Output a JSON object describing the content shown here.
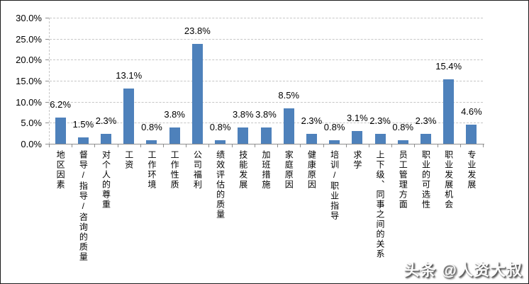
{
  "watermark": {
    "text": "头条 @人资大叔"
  },
  "chart_data": {
    "type": "bar",
    "title": "",
    "xlabel": "",
    "ylabel": "",
    "categories": [
      "地区因素",
      "督导/指导/咨询的质量",
      "对个人的尊重",
      "工资",
      "工作环境",
      "工作性质",
      "公司福利",
      "绩效评估的质量",
      "技能发展",
      "加班措施",
      "家庭原因",
      "健康原因",
      "培训/职业指导",
      "求学",
      "上下级、同事之间的关系",
      "员工管理方面",
      "职业的可选性",
      "职业发展机会",
      "专业发展"
    ],
    "values": [
      6.2,
      1.5,
      2.3,
      13.1,
      0.8,
      3.8,
      23.8,
      0.8,
      3.8,
      3.8,
      8.5,
      2.3,
      0.8,
      3.1,
      2.3,
      0.8,
      2.3,
      15.4,
      4.6
    ],
    "value_labels": [
      "6.2%",
      "1.5%",
      "2.3%",
      "13.1%",
      "0.8%",
      "3.8%",
      "23.8%",
      "0.8%",
      "3.8%",
      "3.8%",
      "8.5%",
      "2.3%",
      "0.8%",
      "3.1%",
      "2.3%",
      "0.8%",
      "2.3%",
      "15.4%",
      "4.6%"
    ],
    "ylim": [
      0,
      30
    ],
    "ytick_step": 5,
    "ytick_labels": [
      "0.0%",
      "5.0%",
      "10.0%",
      "15.0%",
      "20.0%",
      "25.0%",
      "30.0%"
    ],
    "grid": true,
    "legend": false,
    "bar_color": "#4e81bb",
    "gridline_color": "#c6c6c6",
    "axis_color": "#8f8f8f",
    "text_color": "#000000"
  }
}
